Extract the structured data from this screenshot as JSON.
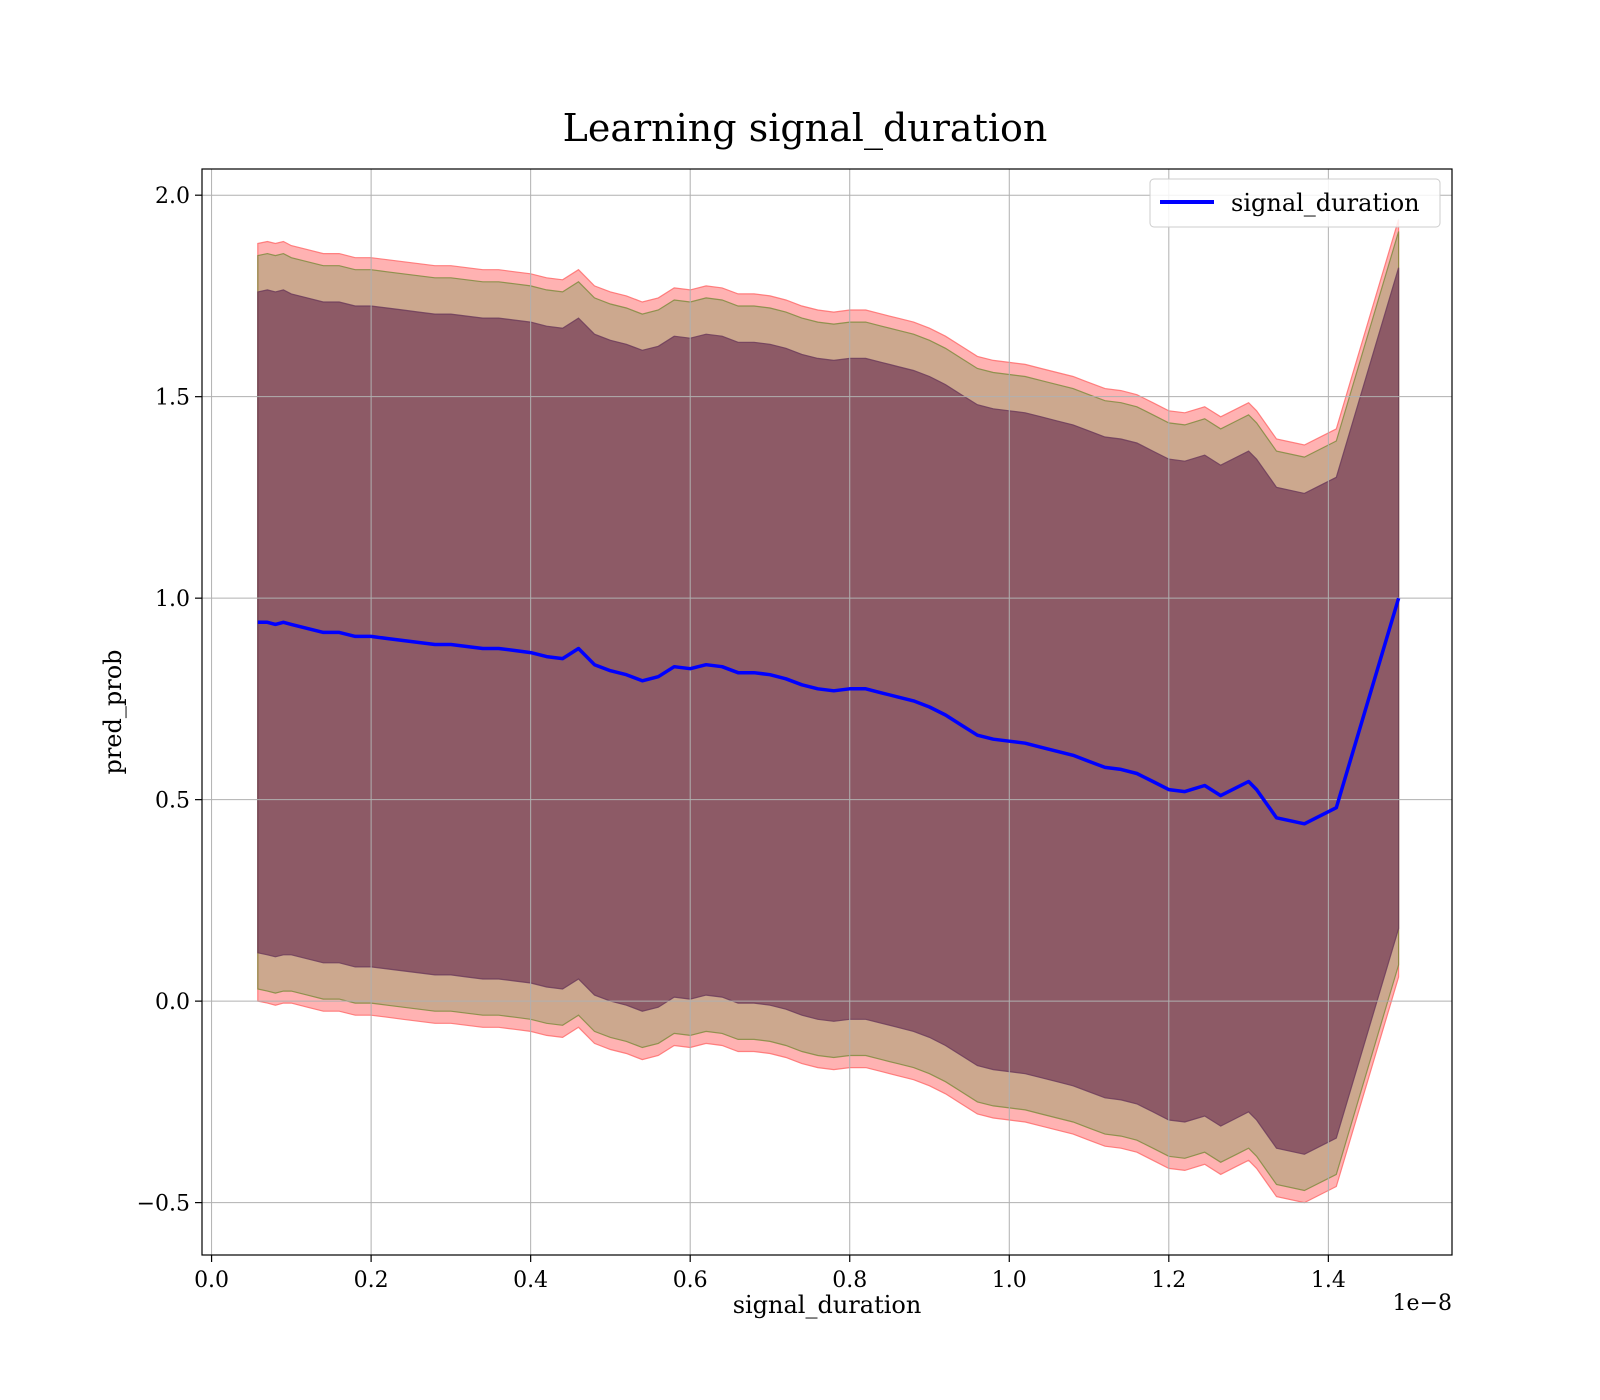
{
  "chart_data": {
    "type": "line",
    "title": "Learning signal_duration",
    "xlabel": "signal_duration",
    "ylabel": "pred_prob",
    "x_offset_text": "1e−8",
    "xlim": [
      -0.012,
      1.555
    ],
    "ylim": [
      -0.63,
      2.065
    ],
    "xticks": [
      0.0,
      0.2,
      0.4,
      0.6,
      0.8,
      1.0,
      1.2,
      1.4
    ],
    "xtick_labels": [
      "0.0",
      "0.2",
      "0.4",
      "0.6",
      "0.8",
      "1.0",
      "1.2",
      "1.4"
    ],
    "yticks": [
      -0.5,
      0.0,
      0.5,
      1.0,
      1.5,
      2.0
    ],
    "ytick_labels": [
      "−0.5",
      "0.0",
      "0.5",
      "1.0",
      "1.5",
      "2.0"
    ],
    "grid": true,
    "legend_position": "top-right",
    "series": [
      {
        "name": "signal_duration",
        "color": "#0000ff",
        "x": [
          0.058,
          0.07,
          0.08,
          0.09,
          0.1,
          0.12,
          0.14,
          0.16,
          0.18,
          0.2,
          0.22,
          0.24,
          0.26,
          0.28,
          0.3,
          0.32,
          0.34,
          0.36,
          0.38,
          0.4,
          0.42,
          0.44,
          0.46,
          0.48,
          0.5,
          0.52,
          0.54,
          0.56,
          0.58,
          0.6,
          0.62,
          0.64,
          0.66,
          0.68,
          0.7,
          0.72,
          0.74,
          0.76,
          0.78,
          0.8,
          0.82,
          0.84,
          0.86,
          0.88,
          0.9,
          0.92,
          0.94,
          0.96,
          0.98,
          1.0,
          1.02,
          1.04,
          1.06,
          1.08,
          1.1,
          1.12,
          1.14,
          1.16,
          1.18,
          1.2,
          1.22,
          1.245,
          1.265,
          1.285,
          1.3,
          1.31,
          1.335,
          1.37,
          1.41,
          1.488
        ],
        "values": [
          0.94,
          0.94,
          0.935,
          0.94,
          0.935,
          0.925,
          0.915,
          0.915,
          0.905,
          0.905,
          0.9,
          0.895,
          0.89,
          0.885,
          0.885,
          0.88,
          0.875,
          0.875,
          0.87,
          0.865,
          0.855,
          0.85,
          0.875,
          0.835,
          0.82,
          0.81,
          0.795,
          0.805,
          0.83,
          0.825,
          0.835,
          0.83,
          0.815,
          0.815,
          0.81,
          0.8,
          0.785,
          0.775,
          0.77,
          0.775,
          0.775,
          0.765,
          0.755,
          0.745,
          0.73,
          0.71,
          0.685,
          0.66,
          0.65,
          0.645,
          0.64,
          0.63,
          0.62,
          0.61,
          0.595,
          0.58,
          0.575,
          0.565,
          0.545,
          0.525,
          0.52,
          0.535,
          0.51,
          0.53,
          0.545,
          0.525,
          0.455,
          0.44,
          0.48,
          1.0
        ]
      }
    ],
    "bands": [
      {
        "fill": "#ff0000",
        "opacity": 0.3,
        "stroke": "#ff6666",
        "upper": [
          1.88,
          1.885,
          1.88,
          1.885,
          1.875,
          1.865,
          1.855,
          1.855,
          1.845,
          1.845,
          1.84,
          1.835,
          1.83,
          1.825,
          1.825,
          1.82,
          1.815,
          1.815,
          1.81,
          1.805,
          1.795,
          1.79,
          1.815,
          1.775,
          1.76,
          1.75,
          1.735,
          1.745,
          1.77,
          1.765,
          1.775,
          1.77,
          1.755,
          1.755,
          1.75,
          1.74,
          1.725,
          1.715,
          1.71,
          1.715,
          1.715,
          1.705,
          1.695,
          1.685,
          1.67,
          1.65,
          1.625,
          1.6,
          1.59,
          1.585,
          1.58,
          1.57,
          1.56,
          1.55,
          1.535,
          1.52,
          1.515,
          1.505,
          1.485,
          1.465,
          1.46,
          1.475,
          1.45,
          1.47,
          1.485,
          1.465,
          1.395,
          1.38,
          1.42,
          1.94
        ],
        "lower": [
          0.0,
          -0.005,
          -0.01,
          -0.005,
          -0.005,
          -0.015,
          -0.025,
          -0.025,
          -0.035,
          -0.035,
          -0.04,
          -0.045,
          -0.05,
          -0.055,
          -0.055,
          -0.06,
          -0.065,
          -0.065,
          -0.07,
          -0.075,
          -0.085,
          -0.09,
          -0.065,
          -0.105,
          -0.12,
          -0.13,
          -0.145,
          -0.135,
          -0.11,
          -0.115,
          -0.105,
          -0.11,
          -0.125,
          -0.125,
          -0.13,
          -0.14,
          -0.155,
          -0.165,
          -0.17,
          -0.165,
          -0.165,
          -0.175,
          -0.185,
          -0.195,
          -0.21,
          -0.23,
          -0.255,
          -0.28,
          -0.29,
          -0.295,
          -0.3,
          -0.31,
          -0.32,
          -0.33,
          -0.345,
          -0.36,
          -0.365,
          -0.375,
          -0.395,
          -0.415,
          -0.42,
          -0.405,
          -0.43,
          -0.41,
          -0.395,
          -0.415,
          -0.485,
          -0.5,
          -0.46,
          0.06
        ]
      },
      {
        "fill": "#008000",
        "opacity": 0.2,
        "stroke": "#7a8a3a",
        "upper": [
          1.85,
          1.855,
          1.85,
          1.855,
          1.845,
          1.835,
          1.825,
          1.825,
          1.815,
          1.815,
          1.81,
          1.805,
          1.8,
          1.795,
          1.795,
          1.79,
          1.785,
          1.785,
          1.78,
          1.775,
          1.765,
          1.76,
          1.785,
          1.745,
          1.73,
          1.72,
          1.705,
          1.715,
          1.74,
          1.735,
          1.745,
          1.74,
          1.725,
          1.725,
          1.72,
          1.71,
          1.695,
          1.685,
          1.68,
          1.685,
          1.685,
          1.675,
          1.665,
          1.655,
          1.64,
          1.62,
          1.595,
          1.57,
          1.56,
          1.555,
          1.55,
          1.54,
          1.53,
          1.52,
          1.505,
          1.49,
          1.485,
          1.475,
          1.455,
          1.435,
          1.43,
          1.445,
          1.42,
          1.44,
          1.455,
          1.435,
          1.365,
          1.35,
          1.39,
          1.91
        ],
        "lower": [
          0.03,
          0.025,
          0.02,
          0.025,
          0.025,
          0.015,
          0.005,
          0.005,
          -0.005,
          -0.005,
          -0.01,
          -0.015,
          -0.02,
          -0.025,
          -0.025,
          -0.03,
          -0.035,
          -0.035,
          -0.04,
          -0.045,
          -0.055,
          -0.06,
          -0.035,
          -0.075,
          -0.09,
          -0.1,
          -0.115,
          -0.105,
          -0.08,
          -0.085,
          -0.075,
          -0.08,
          -0.095,
          -0.095,
          -0.1,
          -0.11,
          -0.125,
          -0.135,
          -0.14,
          -0.135,
          -0.135,
          -0.145,
          -0.155,
          -0.165,
          -0.18,
          -0.2,
          -0.225,
          -0.25,
          -0.26,
          -0.265,
          -0.27,
          -0.28,
          -0.29,
          -0.3,
          -0.315,
          -0.33,
          -0.335,
          -0.345,
          -0.365,
          -0.385,
          -0.39,
          -0.375,
          -0.4,
          -0.38,
          -0.365,
          -0.385,
          -0.455,
          -0.47,
          -0.43,
          0.09
        ]
      },
      {
        "fill": "#5a1a45",
        "opacity": 0.55,
        "stroke": "#6a3a5a",
        "upper": [
          1.76,
          1.765,
          1.76,
          1.765,
          1.755,
          1.745,
          1.735,
          1.735,
          1.725,
          1.725,
          1.72,
          1.715,
          1.71,
          1.705,
          1.705,
          1.7,
          1.695,
          1.695,
          1.69,
          1.685,
          1.675,
          1.67,
          1.695,
          1.655,
          1.64,
          1.63,
          1.615,
          1.625,
          1.65,
          1.645,
          1.655,
          1.65,
          1.635,
          1.635,
          1.63,
          1.62,
          1.605,
          1.595,
          1.59,
          1.595,
          1.595,
          1.585,
          1.575,
          1.565,
          1.55,
          1.53,
          1.505,
          1.48,
          1.47,
          1.465,
          1.46,
          1.45,
          1.44,
          1.43,
          1.415,
          1.4,
          1.395,
          1.385,
          1.365,
          1.345,
          1.34,
          1.355,
          1.33,
          1.35,
          1.365,
          1.345,
          1.275,
          1.26,
          1.3,
          1.82
        ],
        "lower": [
          0.12,
          0.115,
          0.11,
          0.115,
          0.115,
          0.105,
          0.095,
          0.095,
          0.085,
          0.085,
          0.08,
          0.075,
          0.07,
          0.065,
          0.065,
          0.06,
          0.055,
          0.055,
          0.05,
          0.045,
          0.035,
          0.03,
          0.055,
          0.015,
          0.0,
          -0.01,
          -0.025,
          -0.015,
          0.01,
          0.005,
          0.015,
          0.01,
          -0.005,
          -0.005,
          -0.01,
          -0.02,
          -0.035,
          -0.045,
          -0.05,
          -0.045,
          -0.045,
          -0.055,
          -0.065,
          -0.075,
          -0.09,
          -0.11,
          -0.135,
          -0.16,
          -0.17,
          -0.175,
          -0.18,
          -0.19,
          -0.2,
          -0.21,
          -0.225,
          -0.24,
          -0.245,
          -0.255,
          -0.275,
          -0.295,
          -0.3,
          -0.285,
          -0.31,
          -0.29,
          -0.275,
          -0.295,
          -0.365,
          -0.38,
          -0.34,
          0.18
        ]
      }
    ]
  }
}
